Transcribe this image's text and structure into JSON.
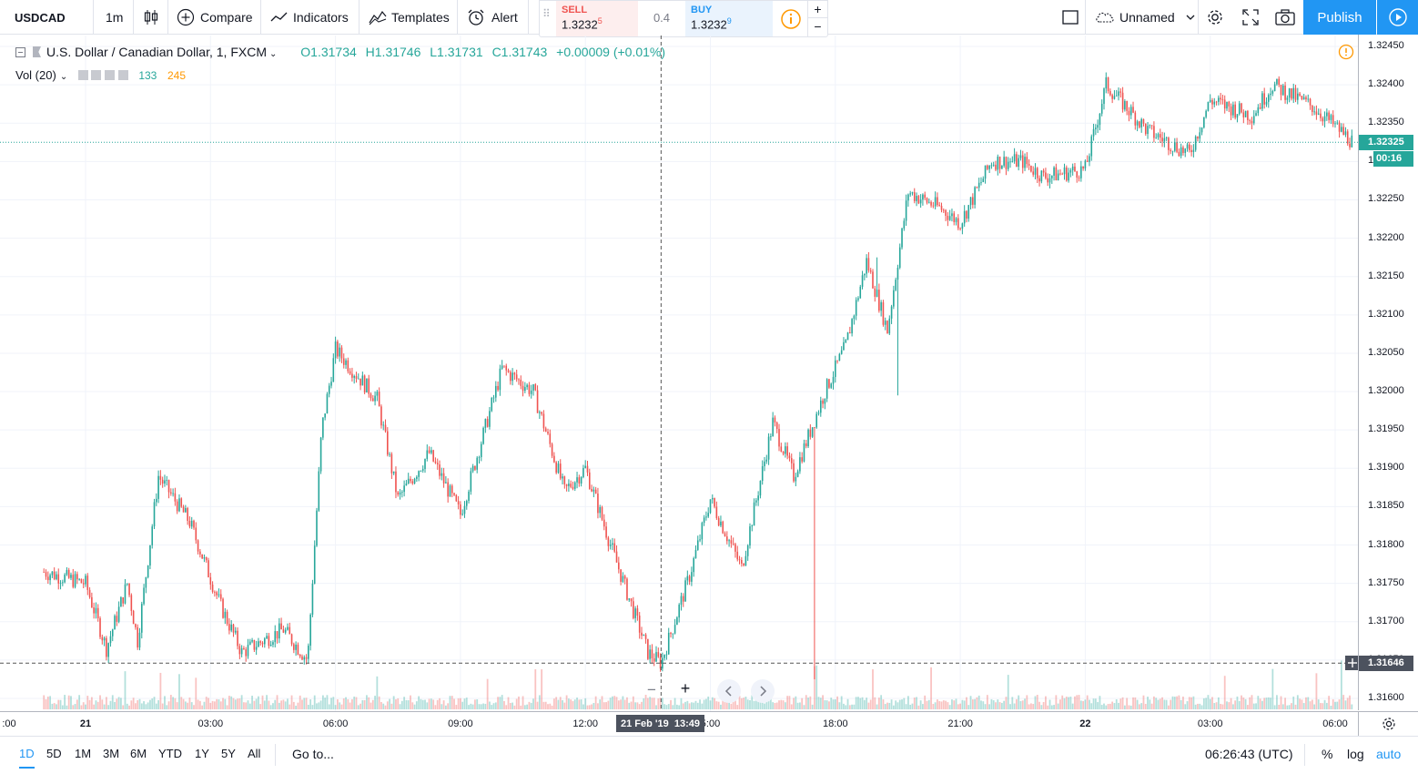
{
  "toolbar": {
    "symbol": "USDCAD",
    "interval": "1m",
    "compare_label": "Compare",
    "indicators_label": "Indicators",
    "templates_label": "Templates",
    "alert_label": "Alert",
    "layout_name": "Unnamed",
    "publish_label": "Publish"
  },
  "trade": {
    "sell_label": "SELL",
    "sell_price": "1.3232",
    "sell_sup": "5",
    "spread": "0.4",
    "buy_label": "BUY",
    "buy_price": "1.3232",
    "buy_sup": "9",
    "plus": "+",
    "minus": "−"
  },
  "legend": {
    "title": "U.S. Dollar / Canadian Dollar, 1, FXCM",
    "open": "O1.31734",
    "high": "H1.31746",
    "low": "L1.31731",
    "close": "C1.31743",
    "change": "+0.00009 (+0.01%)",
    "vol_label": "Vol (20)",
    "vol_value_1": "133",
    "vol_value_2": "245"
  },
  "price_axis": {
    "ticks": [
      "1.32450",
      "1.32400",
      "1.32350",
      "1.32300",
      "1.32250",
      "1.32200",
      "1.32150",
      "1.32100",
      "1.32050",
      "1.32000",
      "1.31950",
      "1.31900",
      "1.31850",
      "1.31800",
      "1.31750",
      "1.31700",
      "1.31650",
      "1.31600"
    ],
    "last_price": "1.32325",
    "countdown": "00:16",
    "crosshair_price": "1.31646"
  },
  "time_axis": {
    "ticks": [
      {
        "label": ":00",
        "bold": false
      },
      {
        "label": "21",
        "bold": true
      },
      {
        "label": "03:00",
        "bold": false
      },
      {
        "label": "06:00",
        "bold": false
      },
      {
        "label": "09:00",
        "bold": false
      },
      {
        "label": "12:00",
        "bold": false
      },
      {
        "label": "5:00",
        "bold": false
      },
      {
        "label": "18:00",
        "bold": false
      },
      {
        "label": "21:00",
        "bold": false
      },
      {
        "label": "22",
        "bold": true
      },
      {
        "label": "03:00",
        "bold": false
      },
      {
        "label": "06:00",
        "bold": false
      }
    ],
    "crosshair_date": "21 Feb '19",
    "crosshair_time": "13:49"
  },
  "bottom": {
    "ranges": [
      "1D",
      "5D",
      "1M",
      "3M",
      "6M",
      "YTD",
      "1Y",
      "5Y",
      "All"
    ],
    "active_range": "1D",
    "goto_label": "Go to...",
    "clock": "06:26:43 (UTC)",
    "percent_label": "%",
    "log_label": "log",
    "auto_label": "auto"
  },
  "colors": {
    "up": "#26a69a",
    "down": "#ef5350",
    "accent": "#2196f3",
    "last_price_badge": "#26a69a",
    "crosshair_badge": "#4c525e"
  },
  "chart_data": {
    "type": "candlestick",
    "symbol": "USDCAD",
    "interval": "1",
    "y_range": [
      1.3158,
      1.3246
    ],
    "x_range": [
      "2019-02-20 23:00",
      "2019-02-22 06:26"
    ],
    "close_path": [
      {
        "t": "2019-02-20 23:00",
        "p": 1.31765
      },
      {
        "t": "2019-02-21 00:00",
        "p": 1.3175
      },
      {
        "t": "2019-02-21 00:30",
        "p": 1.31665
      },
      {
        "t": "2019-02-21 01:00",
        "p": 1.3175
      },
      {
        "t": "2019-02-21 01:15",
        "p": 1.31675
      },
      {
        "t": "2019-02-21 01:45",
        "p": 1.3189
      },
      {
        "t": "2019-02-21 02:30",
        "p": 1.3183
      },
      {
        "t": "2019-02-21 03:15",
        "p": 1.3172
      },
      {
        "t": "2019-02-21 03:45",
        "p": 1.3166
      },
      {
        "t": "2019-02-21 04:45",
        "p": 1.3169
      },
      {
        "t": "2019-02-21 05:20",
        "p": 1.3165
      },
      {
        "t": "2019-02-21 05:40",
        "p": 1.3195
      },
      {
        "t": "2019-02-21 06:00",
        "p": 1.32055
      },
      {
        "t": "2019-02-21 07:00",
        "p": 1.3199
      },
      {
        "t": "2019-02-21 07:30",
        "p": 1.3186
      },
      {
        "t": "2019-02-21 08:15",
        "p": 1.3192
      },
      {
        "t": "2019-02-21 09:00",
        "p": 1.3184
      },
      {
        "t": "2019-02-21 10:00",
        "p": 1.3203
      },
      {
        "t": "2019-02-21 10:45",
        "p": 1.32
      },
      {
        "t": "2019-02-21 11:30",
        "p": 1.3187
      },
      {
        "t": "2019-02-21 12:00",
        "p": 1.319
      },
      {
        "t": "2019-02-21 12:40",
        "p": 1.3179
      },
      {
        "t": "2019-02-21 13:30",
        "p": 1.3166
      },
      {
        "t": "2019-02-21 13:49",
        "p": 1.31646
      },
      {
        "t": "2019-02-21 14:30",
        "p": 1.3176
      },
      {
        "t": "2019-02-21 15:00",
        "p": 1.3186
      },
      {
        "t": "2019-02-21 15:45",
        "p": 1.3177
      },
      {
        "t": "2019-02-21 16:30",
        "p": 1.3196
      },
      {
        "t": "2019-02-21 17:00",
        "p": 1.3189
      },
      {
        "t": "2019-02-21 17:45",
        "p": 1.32
      },
      {
        "t": "2019-02-21 18:15",
        "p": 1.3206
      },
      {
        "t": "2019-02-21 18:45",
        "p": 1.3217
      },
      {
        "t": "2019-02-21 19:15",
        "p": 1.3208
      },
      {
        "t": "2019-02-21 19:45",
        "p": 1.3226
      },
      {
        "t": "2019-02-21 20:30",
        "p": 1.3224
      },
      {
        "t": "2019-02-21 21:00",
        "p": 1.3222
      },
      {
        "t": "2019-02-21 21:45",
        "p": 1.323
      },
      {
        "t": "2019-02-21 22:30",
        "p": 1.323
      },
      {
        "t": "2019-02-21 23:00",
        "p": 1.3228
      },
      {
        "t": "2019-02-22 00:00",
        "p": 1.3229
      },
      {
        "t": "2019-02-22 00:30",
        "p": 1.324
      },
      {
        "t": "2019-02-22 01:30",
        "p": 1.3234
      },
      {
        "t": "2019-02-22 02:30",
        "p": 1.3231
      },
      {
        "t": "2019-02-22 03:00",
        "p": 1.3238
      },
      {
        "t": "2019-02-22 04:00",
        "p": 1.3236
      },
      {
        "t": "2019-02-22 04:30",
        "p": 1.324
      },
      {
        "t": "2019-02-22 05:30",
        "p": 1.3237
      },
      {
        "t": "2019-02-22 06:26",
        "p": 1.32325
      }
    ],
    "lows_and_spikes": [
      {
        "t": "2019-02-21 17:30",
        "low": 1.31625
      },
      {
        "t": "2019-02-21 19:30",
        "low": 1.31995
      },
      {
        "t": "2019-02-21 19:00",
        "high": 1.32175
      }
    ]
  }
}
